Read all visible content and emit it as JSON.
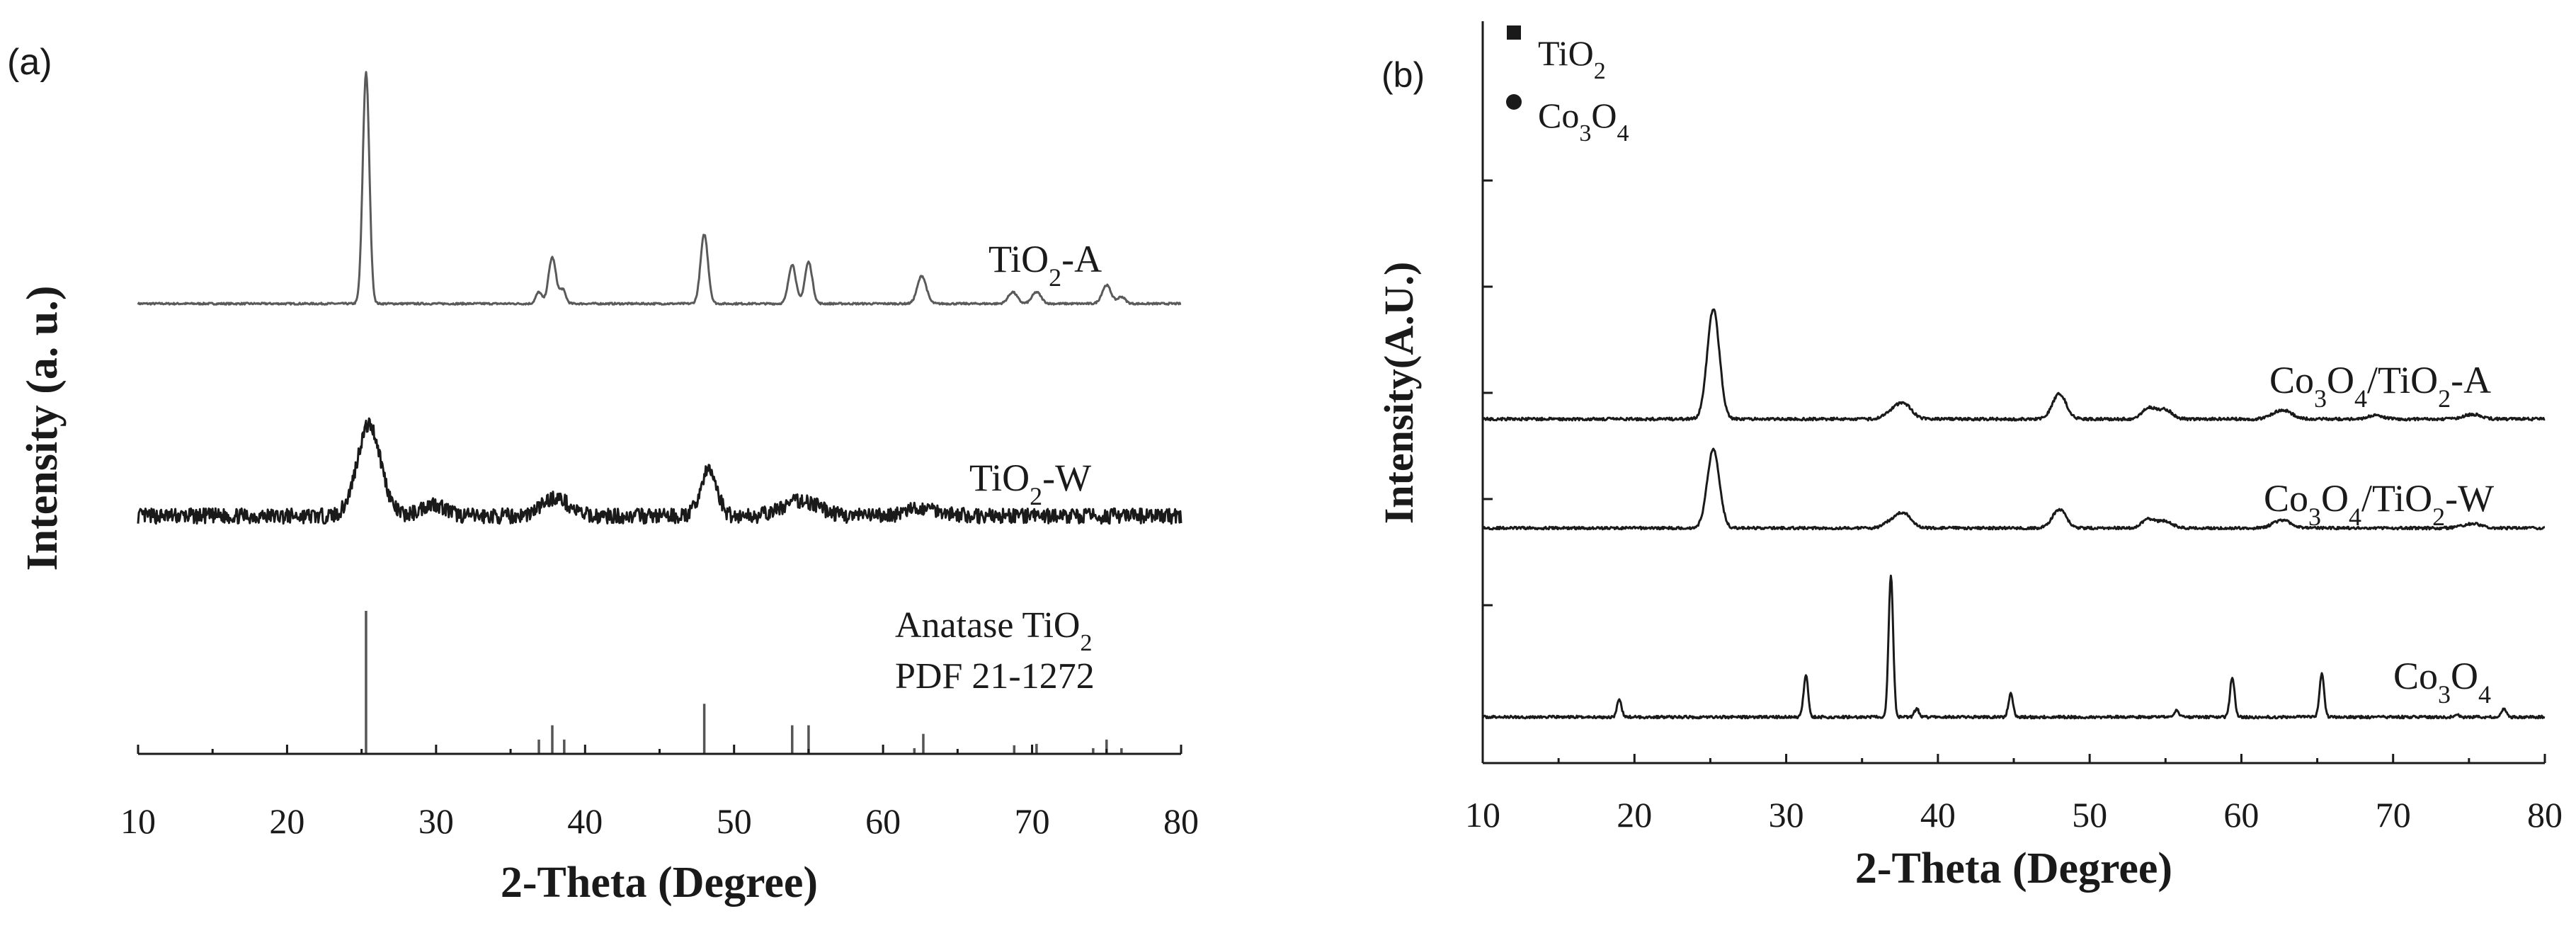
{
  "chart_data": [
    {
      "panel": "(a)",
      "type": "line",
      "xlabel": "2-Theta (Degree)",
      "ylabel": "Intensity (a. u.)",
      "xlim": [
        10,
        80
      ],
      "x_ticks": [
        10,
        20,
        30,
        40,
        50,
        60,
        70,
        80
      ],
      "y_ticks_shown": false,
      "series": [
        {
          "name": "TiO2-A",
          "label_main": "TiO",
          "label_sub": "2",
          "label_suffix": "-A",
          "noise": 0.004,
          "peaks": [
            [
              25.3,
              1.0,
              0.22
            ],
            [
              36.9,
              0.05,
              0.2
            ],
            [
              37.8,
              0.2,
              0.25
            ],
            [
              38.5,
              0.06,
              0.2
            ],
            [
              48.0,
              0.3,
              0.25
            ],
            [
              53.9,
              0.17,
              0.25
            ],
            [
              55.0,
              0.18,
              0.25
            ],
            [
              62.6,
              0.12,
              0.3
            ],
            [
              68.7,
              0.05,
              0.3
            ],
            [
              70.3,
              0.05,
              0.3
            ],
            [
              75.0,
              0.08,
              0.3
            ],
            [
              76.0,
              0.03,
              0.25
            ]
          ]
        },
        {
          "name": "TiO2-W",
          "label_main": "TiO",
          "label_sub": "2",
          "label_suffix": "-W",
          "noise": 0.05,
          "peaks": [
            [
              25.5,
              0.6,
              0.8
            ],
            [
              29.8,
              0.08,
              0.8
            ],
            [
              38.0,
              0.12,
              0.9
            ],
            [
              48.3,
              0.3,
              0.55
            ],
            [
              54.5,
              0.1,
              1.2
            ],
            [
              62.8,
              0.05,
              1.2
            ]
          ]
        }
      ],
      "reference": {
        "label_line1_main": "Anatase TiO",
        "label_line1_sub": "2",
        "label_line2": "PDF 21-1272",
        "sticks": [
          [
            25.3,
            1.0
          ],
          [
            36.9,
            0.1
          ],
          [
            37.8,
            0.2
          ],
          [
            38.6,
            0.1
          ],
          [
            48.0,
            0.35
          ],
          [
            53.9,
            0.2
          ],
          [
            55.0,
            0.2
          ],
          [
            62.1,
            0.04
          ],
          [
            62.7,
            0.14
          ],
          [
            68.8,
            0.06
          ],
          [
            70.3,
            0.07
          ],
          [
            74.1,
            0.04
          ],
          [
            75.0,
            0.1
          ],
          [
            76.0,
            0.04
          ]
        ]
      }
    },
    {
      "panel": "(b)",
      "type": "line",
      "xlabel": "2-Theta (Degree)",
      "ylabel": "Intensity(A.U.)",
      "xlim": [
        10,
        80
      ],
      "x_ticks": [
        10,
        20,
        30,
        40,
        50,
        60,
        70,
        80
      ],
      "y_ticks_shown": false,
      "legend": [
        {
          "marker": "square",
          "main": "TiO",
          "sub": "2",
          "sub2": "",
          "sub_main2": ""
        },
        {
          "marker": "circle",
          "main": "Co",
          "sub": "3",
          "sub_main2": "O",
          "sub2": "4"
        }
      ],
      "series": [
        {
          "name": "Co3O4/TiO2-A",
          "label": [
            "Co",
            "3",
            "O",
            "4",
            "/TiO",
            "2",
            "-A"
          ],
          "noise": 0.012,
          "peaks": [
            [
              25.2,
              0.95,
              0.4
            ],
            [
              37.0,
              0.06,
              0.5
            ],
            [
              37.8,
              0.12,
              0.5
            ],
            [
              48.0,
              0.22,
              0.45
            ],
            [
              53.9,
              0.1,
              0.45
            ],
            [
              55.0,
              0.08,
              0.45
            ],
            [
              62.7,
              0.08,
              0.6
            ],
            [
              68.8,
              0.03,
              0.5
            ],
            [
              75.2,
              0.04,
              0.6
            ]
          ]
        },
        {
          "name": "Co3O4/TiO2-W",
          "label": [
            "Co",
            "3",
            "O",
            "4",
            "/TiO",
            "2",
            "-W"
          ],
          "noise": 0.012,
          "peaks": [
            [
              25.2,
              0.72,
              0.4
            ],
            [
              37.0,
              0.06,
              0.5
            ],
            [
              37.8,
              0.12,
              0.5
            ],
            [
              48.0,
              0.17,
              0.45
            ],
            [
              53.9,
              0.08,
              0.45
            ],
            [
              55.0,
              0.06,
              0.45
            ],
            [
              62.7,
              0.07,
              0.6
            ],
            [
              75.2,
              0.04,
              0.6
            ]
          ]
        },
        {
          "name": "Co3O4",
          "label": [
            "Co",
            "3",
            "O",
            "4",
            "",
            "",
            ""
          ],
          "noise": 0.008,
          "peaks": [
            [
              19.0,
              0.1,
              0.15
            ],
            [
              31.3,
              0.25,
              0.15
            ],
            [
              36.9,
              0.85,
              0.15
            ],
            [
              38.6,
              0.05,
              0.15
            ],
            [
              44.8,
              0.14,
              0.15
            ],
            [
              55.7,
              0.04,
              0.15
            ],
            [
              59.4,
              0.24,
              0.15
            ],
            [
              65.3,
              0.26,
              0.15
            ],
            [
              74.2,
              0.02,
              0.15
            ],
            [
              77.3,
              0.05,
              0.15
            ]
          ]
        }
      ]
    }
  ]
}
